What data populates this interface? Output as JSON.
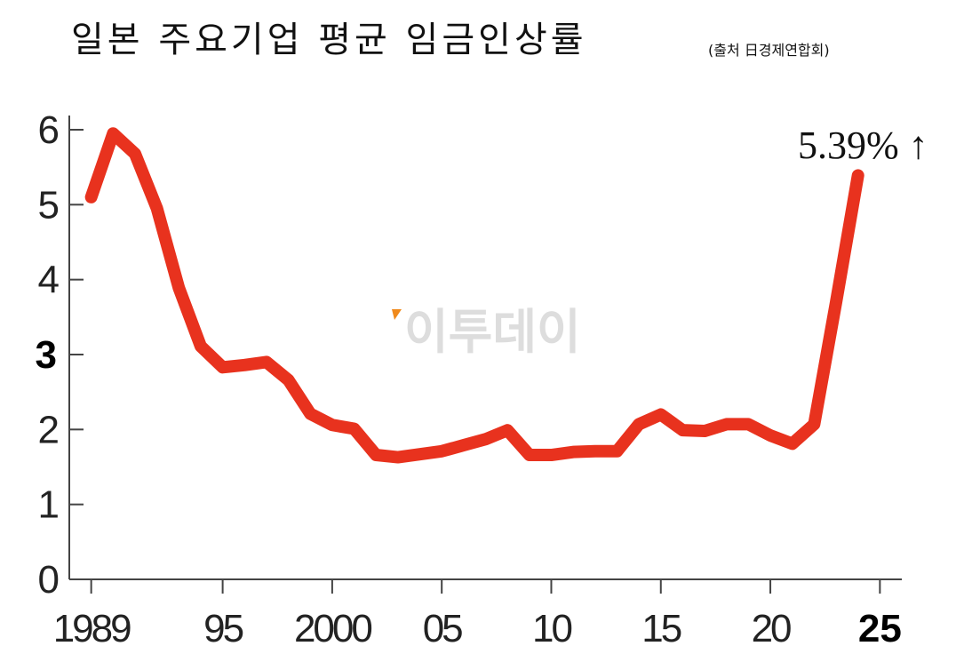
{
  "chart_data": {
    "type": "line",
    "title": "일본 주요기업 평균 임금인상률",
    "subtitle": "(출처 日경제연합회)",
    "annotation": "5.39% ↑",
    "watermark": "이투데이",
    "x": [
      1989,
      1990,
      1991,
      1992,
      1993,
      1994,
      1995,
      1996,
      1997,
      1998,
      1999,
      2000,
      2001,
      2002,
      2003,
      2004,
      2005,
      2006,
      2007,
      2008,
      2009,
      2010,
      2011,
      2012,
      2013,
      2014,
      2015,
      2016,
      2017,
      2018,
      2019,
      2020,
      2021,
      2022,
      2023,
      2024
    ],
    "series": [
      {
        "color": "#e8321e",
        "values": [
          5.1,
          5.95,
          5.68,
          4.95,
          3.89,
          3.11,
          2.83,
          2.86,
          2.9,
          2.66,
          2.21,
          2.06,
          2.01,
          1.66,
          1.63,
          1.67,
          1.71,
          1.79,
          1.87,
          1.99,
          1.66,
          1.66,
          1.7,
          1.71,
          1.71,
          2.07,
          2.2,
          1.99,
          1.98,
          2.07,
          2.07,
          1.92,
          1.81,
          2.07,
          3.7,
          5.39
        ]
      }
    ],
    "xlim": [
      1988,
      2026
    ],
    "ylim": [
      0,
      6
    ],
    "xticks": [
      1989,
      {
        "value": 1995,
        "label": "95"
      },
      2000,
      {
        "value": 2005,
        "label": "05"
      },
      {
        "value": 2010,
        "label": "10"
      },
      {
        "value": 2015,
        "label": "15"
      },
      {
        "value": 2020,
        "label": "20"
      },
      {
        "value": 2025,
        "label": "25"
      }
    ],
    "yticks": [
      0,
      1,
      2,
      3,
      4,
      5,
      6
    ]
  }
}
